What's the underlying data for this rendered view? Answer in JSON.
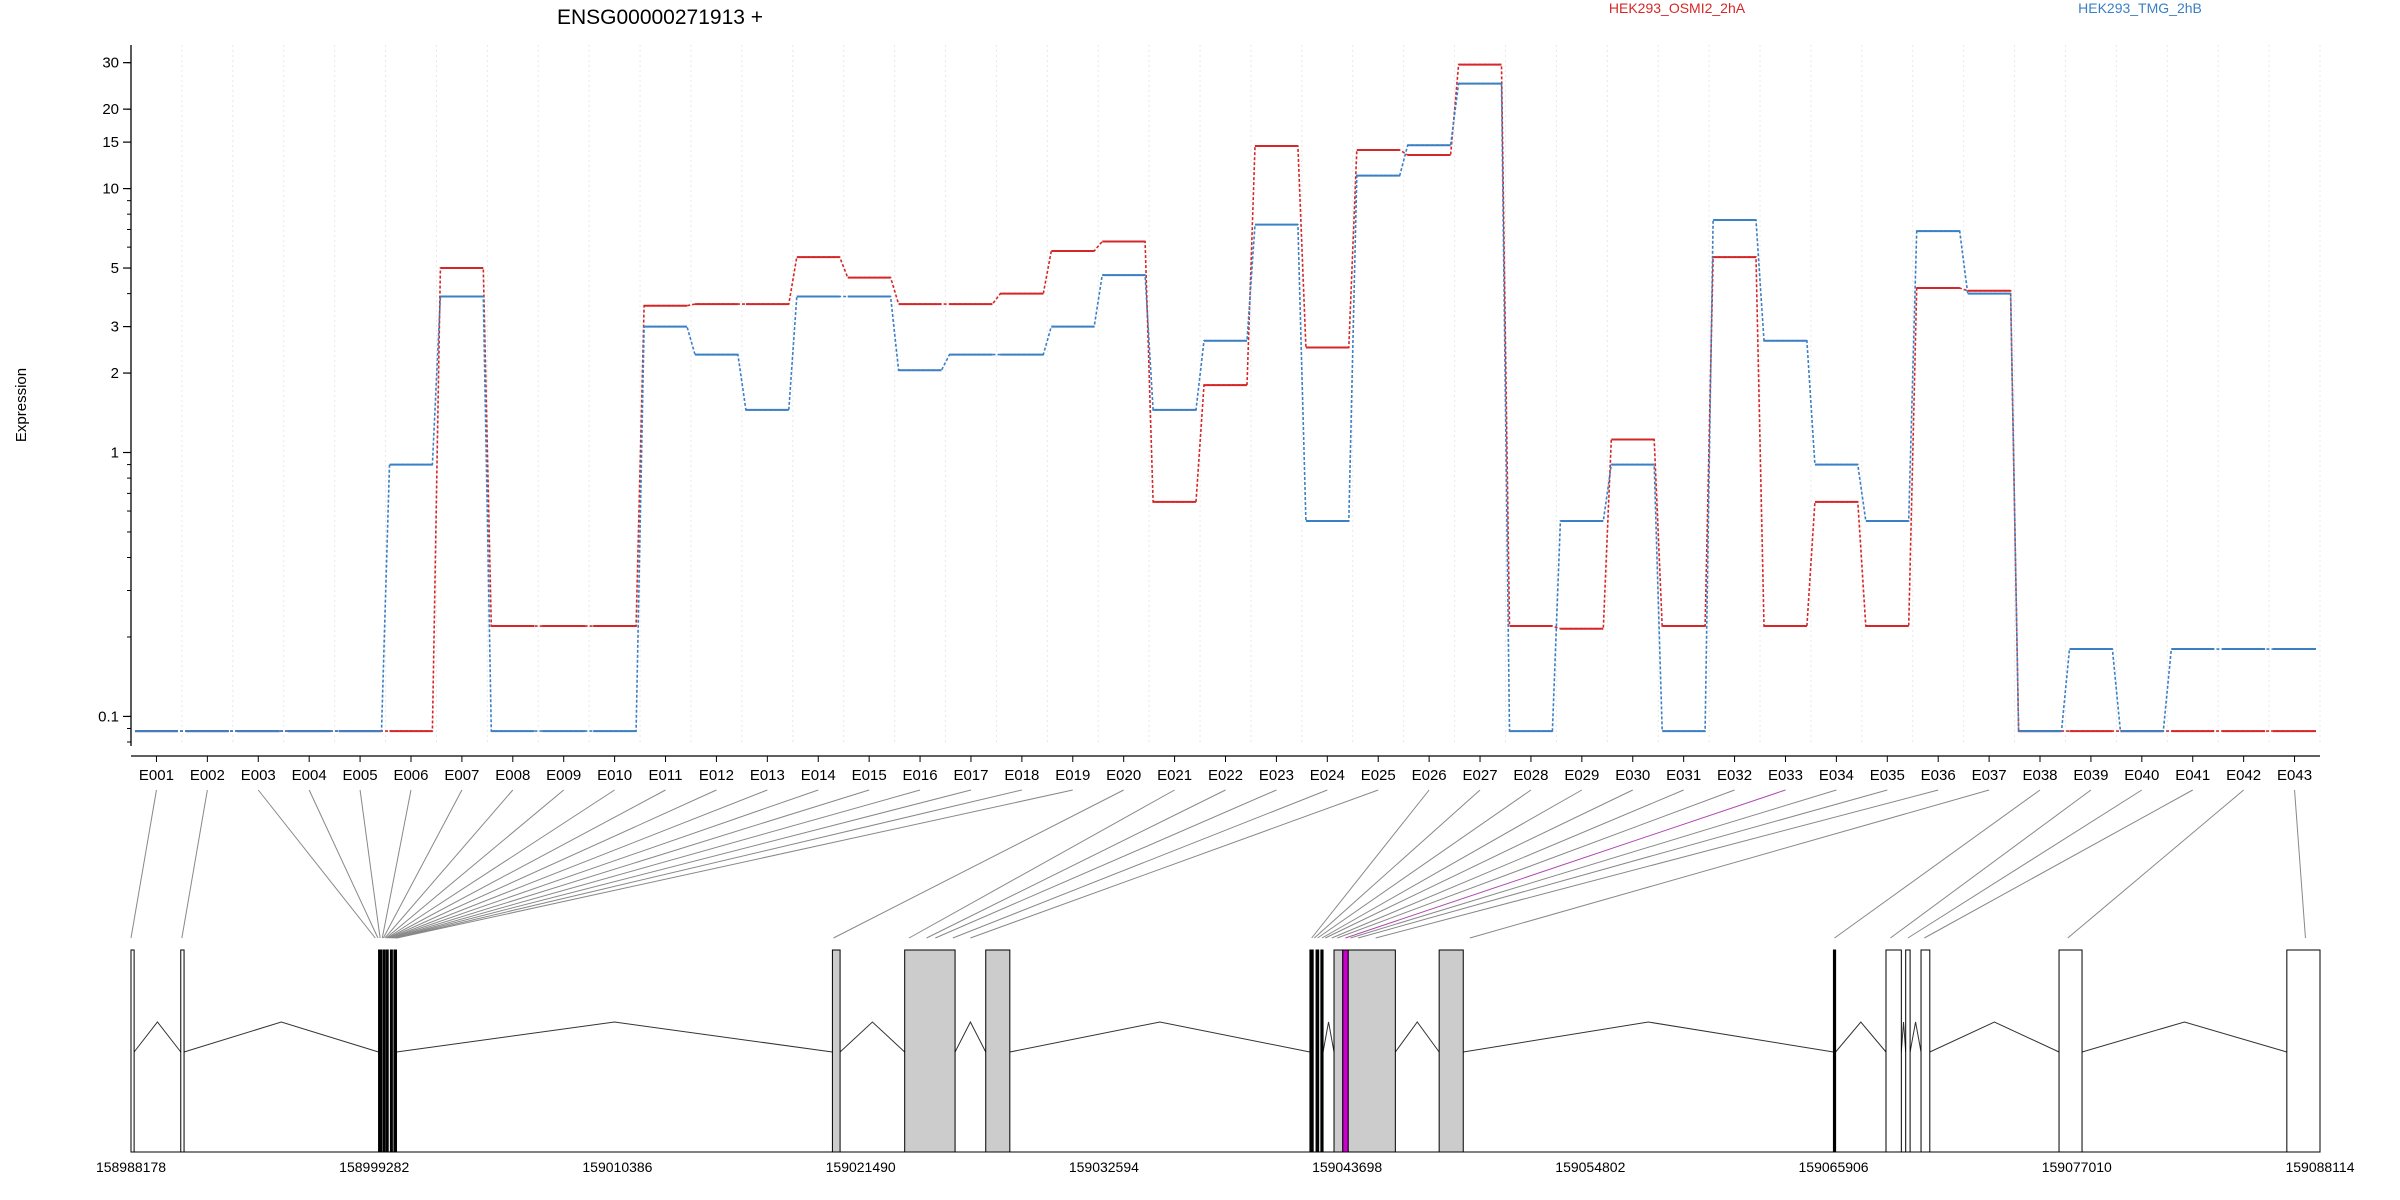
{
  "chart_data": {
    "type": "line",
    "title": "ENSG00000271913 +",
    "ylabel": "Expression",
    "yscale": "log",
    "ylim": [
      0.08,
      35
    ],
    "yticks": [
      0.1,
      1,
      2,
      3,
      5,
      10,
      15,
      20,
      30
    ],
    "categories": [
      "E001",
      "E002",
      "E003",
      "E004",
      "E005",
      "E006",
      "E007",
      "E008",
      "E009",
      "E010",
      "E011",
      "E012",
      "E013",
      "E014",
      "E015",
      "E016",
      "E017",
      "E018",
      "E019",
      "E020",
      "E021",
      "E022",
      "E023",
      "E024",
      "E025",
      "E026",
      "E027",
      "E028",
      "E029",
      "E030",
      "E031",
      "E032",
      "E033",
      "E034",
      "E035",
      "E036",
      "E037",
      "E038",
      "E039",
      "E040",
      "E041",
      "E042",
      "E043"
    ],
    "series": [
      {
        "name": "HEK293_OSMI2_2hA",
        "color": "#d62728",
        "values": [
          0.088,
          0.088,
          0.088,
          0.088,
          0.088,
          0.088,
          5.0,
          0.22,
          0.22,
          0.22,
          3.6,
          3.65,
          3.65,
          5.5,
          4.6,
          3.65,
          3.65,
          4.0,
          5.8,
          6.3,
          0.65,
          1.8,
          14.5,
          2.5,
          14.0,
          13.4,
          29.5,
          0.22,
          0.215,
          1.12,
          0.22,
          5.5,
          0.22,
          0.65,
          0.22,
          4.2,
          4.1,
          0.088,
          0.088,
          0.088,
          0.088,
          0.088,
          0.088
        ]
      },
      {
        "name": "HEK293_TMG_2hB",
        "color": "#3b7fc4",
        "values": [
          0.088,
          0.088,
          0.088,
          0.088,
          0.088,
          0.9,
          3.9,
          0.088,
          0.088,
          0.088,
          3.0,
          2.35,
          1.45,
          3.9,
          3.9,
          2.05,
          2.35,
          2.35,
          3.0,
          4.7,
          1.45,
          2.65,
          7.3,
          0.55,
          11.2,
          14.6,
          25.0,
          0.088,
          0.55,
          0.9,
          0.088,
          7.6,
          2.65,
          0.9,
          0.55,
          6.9,
          4.0,
          0.088,
          0.18,
          0.088,
          0.18,
          0.18,
          0.18
        ]
      }
    ],
    "gene_model": {
      "coordinate_labels": [
        "158988178",
        "158999282",
        "159010386",
        "159021490",
        "159032594",
        "159043698",
        "159054802",
        "159065906",
        "159077010",
        "159088114"
      ],
      "coord_min": 158988178,
      "coord_max": 159088114,
      "exon_blocks": [
        {
          "start": 158988178,
          "end": 158988320,
          "fill": "white"
        },
        {
          "start": 158990450,
          "end": 158990600,
          "fill": "white"
        },
        {
          "start": 158999480,
          "end": 158999620,
          "fill": "black"
        },
        {
          "start": 158999680,
          "end": 158999780,
          "fill": "black"
        },
        {
          "start": 158999830,
          "end": 158999920,
          "fill": "black"
        },
        {
          "start": 159000020,
          "end": 159000110,
          "fill": "black"
        },
        {
          "start": 159000180,
          "end": 159000300,
          "fill": "black"
        },
        {
          "start": 159020200,
          "end": 159020550,
          "fill": "gray"
        },
        {
          "start": 159023500,
          "end": 159025800,
          "fill": "gray"
        },
        {
          "start": 159027200,
          "end": 159028300,
          "fill": "gray"
        },
        {
          "start": 159042000,
          "end": 159042150,
          "fill": "black"
        },
        {
          "start": 159042280,
          "end": 159042400,
          "fill": "black"
        },
        {
          "start": 159042500,
          "end": 159042600,
          "fill": "black"
        },
        {
          "start": 159043100,
          "end": 159043500,
          "fill": "gray"
        },
        {
          "start": 159043500,
          "end": 159043750,
          "fill": "magenta"
        },
        {
          "start": 159043750,
          "end": 159045900,
          "fill": "gray"
        },
        {
          "start": 159047900,
          "end": 159049000,
          "fill": "gray"
        },
        {
          "start": 159065900,
          "end": 159066000,
          "fill": "black"
        },
        {
          "start": 159068300,
          "end": 159069000,
          "fill": "white"
        },
        {
          "start": 159069200,
          "end": 159069400,
          "fill": "white"
        },
        {
          "start": 159069900,
          "end": 159070300,
          "fill": "white"
        },
        {
          "start": 159076200,
          "end": 159077250,
          "fill": "white"
        },
        {
          "start": 159086600,
          "end": 159088114,
          "fill": "white"
        }
      ],
      "exon_map_x": [
        158988178,
        158990500,
        158999330,
        158999450,
        158999550,
        158999650,
        158999700,
        158999770,
        158999830,
        158999880,
        158999930,
        158999980,
        159000040,
        159000090,
        159000150,
        159000200,
        159000240,
        159000290,
        159000320,
        159020250,
        159023700,
        159024500,
        159024900,
        159025700,
        159026500,
        159042080,
        159042200,
        159042350,
        159042550,
        159042700,
        159043000,
        159043250,
        159043620,
        159043850,
        159044200,
        159045000,
        159049300,
        159065950,
        159068500,
        159069300,
        159070050,
        159076600,
        159087450
      ],
      "highlight_exon": "E033"
    }
  }
}
